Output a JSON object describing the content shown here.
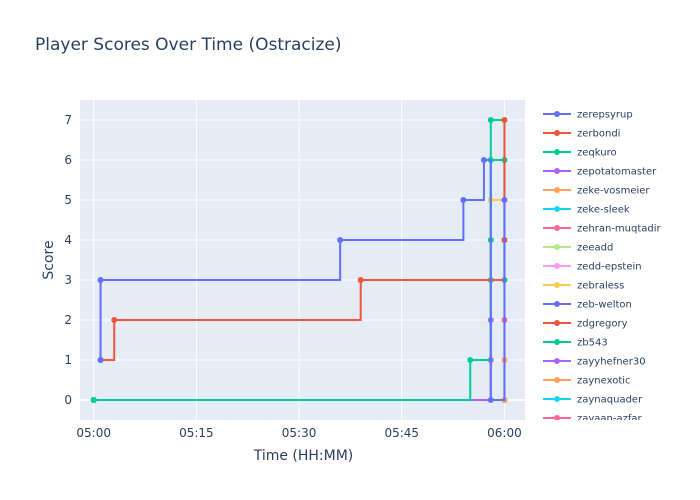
{
  "chart_data": {
    "type": "line",
    "line_shape": "step",
    "title": "Player Scores Over Time (Ostracize)",
    "xlabel": "Time (HH:MM)",
    "ylabel": "Score",
    "xlim": [
      "04:58",
      "06:03"
    ],
    "ylim": [
      -0.5,
      7.5
    ],
    "x_ticks": [
      "05:00",
      "05:15",
      "05:30",
      "05:45",
      "06:00"
    ],
    "y_ticks": [
      0,
      1,
      2,
      3,
      4,
      5,
      6,
      7
    ],
    "grid": true,
    "legend_position": "right",
    "plot_background": "#e5ecf6",
    "series": [
      {
        "name": "zerepsyrup",
        "color": "#636efa",
        "points": [
          [
            "05:01",
            1
          ],
          [
            "05:01",
            3
          ],
          [
            "05:36",
            4
          ],
          [
            "05:54",
            5
          ],
          [
            "05:57",
            6
          ],
          [
            "05:58",
            0
          ],
          [
            "06:00",
            5
          ]
        ]
      },
      {
        "name": "zerbondi",
        "color": "#ef553b",
        "points": [
          [
            "05:01",
            1
          ],
          [
            "05:03",
            2
          ],
          [
            "05:39",
            3
          ],
          [
            "06:00",
            4
          ],
          [
            "06:00",
            7
          ]
        ]
      },
      {
        "name": "zeqkuro",
        "color": "#00cc96",
        "points": [
          [
            "05:00",
            0
          ],
          [
            "05:55",
            1
          ],
          [
            "05:58",
            4
          ],
          [
            "05:58",
            7
          ],
          [
            "06:00",
            3
          ],
          [
            "06:00",
            6
          ]
        ]
      },
      {
        "name": "zepotatomaster",
        "color": "#ab63fa",
        "points": [
          [
            "05:00",
            0
          ],
          [
            "05:58",
            1
          ],
          [
            "05:58",
            2
          ]
        ]
      },
      {
        "name": "zeke-vosmeier",
        "color": "#ffa15a",
        "points": [
          [
            "05:00",
            0
          ],
          [
            "06:00",
            0
          ],
          [
            "06:00",
            1
          ]
        ]
      },
      {
        "name": "zeke-sleek",
        "color": "#19d3f3",
        "points": [
          [
            "05:00",
            0
          ],
          [
            "06:00",
            0
          ]
        ]
      },
      {
        "name": "zehran-muqtadir",
        "color": "#ff6692",
        "points": [
          [
            "05:00",
            0
          ],
          [
            "06:00",
            0
          ],
          [
            "06:00",
            2
          ]
        ]
      },
      {
        "name": "zeeadd",
        "color": "#b6e880",
        "points": [
          [
            "05:00",
            0
          ],
          [
            "06:00",
            0
          ]
        ]
      },
      {
        "name": "zedd-epstein",
        "color": "#ff97ff",
        "points": [
          [
            "05:00",
            0
          ],
          [
            "06:00",
            0
          ],
          [
            "06:00",
            2
          ]
        ]
      },
      {
        "name": "zebraless",
        "color": "#fecb52",
        "points": [
          [
            "05:00",
            0
          ],
          [
            "05:58",
            5
          ],
          [
            "06:00",
            1
          ]
        ]
      },
      {
        "name": "zeb-welton",
        "color": "#636efa",
        "points": [
          [
            "05:00",
            0
          ],
          [
            "06:00",
            0
          ]
        ]
      },
      {
        "name": "zdgregory",
        "color": "#ef553b",
        "points": [
          [
            "05:00",
            0
          ],
          [
            "06:00",
            0
          ]
        ]
      },
      {
        "name": "zb543",
        "color": "#00cc96",
        "points": [
          [
            "05:00",
            0
          ],
          [
            "05:58",
            3
          ],
          [
            "05:58",
            6
          ],
          [
            "06:00",
            0
          ]
        ]
      },
      {
        "name": "zayyhefner30",
        "color": "#ab63fa",
        "points": [
          [
            "05:00",
            0
          ],
          [
            "06:00",
            0
          ]
        ]
      },
      {
        "name": "zaynexotic",
        "color": "#ffa15a",
        "points": [
          [
            "05:00",
            0
          ],
          [
            "06:00",
            0
          ]
        ]
      },
      {
        "name": "zaynaquader",
        "color": "#19d3f3",
        "points": [
          [
            "05:00",
            0
          ],
          [
            "06:00",
            0
          ]
        ]
      },
      {
        "name": "zayaan-azfar",
        "color": "#ff6692",
        "points": [
          [
            "05:00",
            0
          ],
          [
            "06:00",
            0
          ]
        ]
      }
    ]
  }
}
